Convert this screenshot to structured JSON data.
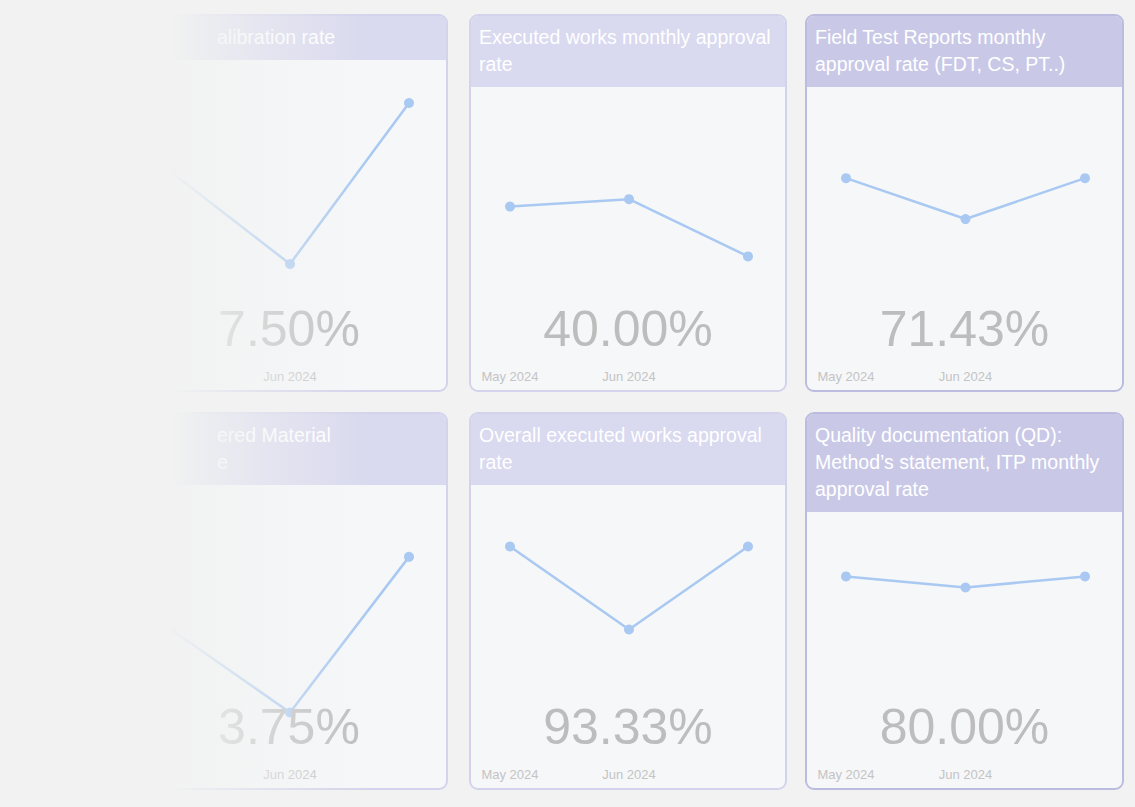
{
  "chart_data": [
    {
      "type": "line",
      "title": "alibration rate",
      "categories": [
        null,
        "Jun 2024",
        null
      ],
      "values": [
        50,
        40,
        57.5
      ],
      "ylim": [
        30,
        60
      ],
      "color": "#a9c9f2",
      "marker": "circle",
      "tick_labels": "x",
      "grid": false,
      "annotation": "7.50%"
    },
    {
      "type": "line",
      "title": "Executed works monthly approval rate",
      "categories": [
        "May 2024",
        "Jun 2024",
        null
      ],
      "values": [
        60,
        63,
        40
      ],
      "ylim": [
        0,
        100
      ],
      "color": "#a9c9f2",
      "marker": "circle",
      "tick_labels": "x",
      "grid": false,
      "annotation": "40.00%"
    },
    {
      "type": "line",
      "title": "Field Test Reports monthly approval rate (FDT, CS, PT..)",
      "categories": [
        "May 2024",
        "Jun 2024",
        null
      ],
      "values": [
        71.43,
        55,
        71.43
      ],
      "ylim": [
        0,
        100
      ],
      "color": "#a9c9f2",
      "marker": "circle",
      "tick_labels": "x",
      "grid": false,
      "annotation": "71.43%"
    },
    {
      "type": "line",
      "title": "ered Material\ne",
      "categories": [
        null,
        "Jun 2024",
        null
      ],
      "values": [
        85,
        75,
        93.75
      ],
      "ylim": [
        70,
        100
      ],
      "color": "#a9c9f2",
      "marker": "circle",
      "tick_labels": "x",
      "grid": false,
      "annotation": "3.75%"
    },
    {
      "type": "line",
      "title": "Overall executed works approval rate",
      "categories": [
        "May 2024",
        "Jun 2024",
        null
      ],
      "values": [
        93.33,
        80,
        93.33
      ],
      "ylim": [
        60,
        100
      ],
      "color": "#a9c9f2",
      "marker": "circle",
      "tick_labels": "x",
      "grid": false,
      "annotation": "93.33%"
    },
    {
      "type": "line",
      "title": "Quality documentation (QD): Method’s statement, ITP monthly approval rate",
      "categories": [
        "May 2024",
        "Jun 2024",
        null
      ],
      "values": [
        80,
        75,
        80
      ],
      "ylim": [
        0,
        100
      ],
      "color": "#a9c9f2",
      "marker": "circle",
      "tick_labels": "x",
      "grid": false,
      "annotation": "80.00%"
    }
  ]
}
